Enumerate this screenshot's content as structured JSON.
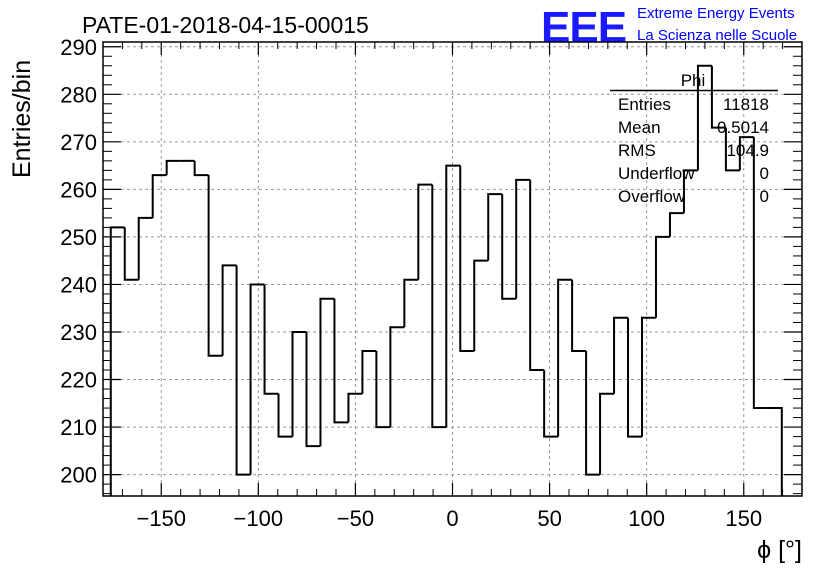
{
  "header": {
    "title": "PATE-01-2018-04-15-00015",
    "logo_text": "EEE",
    "org_line1": "Extreme Energy Events",
    "org_line2": "La Scienza nelle Scuole"
  },
  "stats": {
    "name": "Phi",
    "rows": [
      {
        "label": "Entries",
        "value": "11818"
      },
      {
        "label": "Mean",
        "value": "0.5014"
      },
      {
        "label": "RMS",
        "value": "104.9"
      },
      {
        "label": "Underflow",
        "value": "0"
      },
      {
        "label": "Overflow",
        "value": "0"
      }
    ]
  },
  "chart_data": {
    "type": "histogram",
    "title": "PATE-01-2018-04-15-00015",
    "xlabel": "ϕ [°]",
    "ylabel": "Entries/bin",
    "xlim": [
      -180,
      180
    ],
    "ylim": [
      195.5,
      291
    ],
    "bin_width": 7.2,
    "bin_edges_start": -176,
    "values": [
      252,
      241,
      254,
      263,
      266,
      266,
      263,
      225,
      244,
      200,
      240,
      217,
      208,
      230,
      206,
      237,
      211,
      217,
      226,
      210,
      231,
      241,
      261,
      210,
      265,
      226,
      245,
      259,
      237,
      262,
      222,
      208,
      241,
      226,
      200,
      217,
      233,
      208,
      233,
      250,
      255,
      264,
      286,
      273,
      264,
      271,
      214,
      214
    ],
    "x_ticks": [
      -150,
      -100,
      -50,
      0,
      50,
      100,
      150
    ],
    "x_tick_labels": [
      "−150",
      "−100",
      "−50",
      "0",
      "50",
      "100",
      "150"
    ],
    "y_ticks": [
      200,
      210,
      220,
      230,
      240,
      250,
      260,
      270,
      280,
      290
    ],
    "y_tick_labels": [
      "200",
      "210",
      "220",
      "230",
      "240",
      "250",
      "260",
      "270",
      "280",
      "290"
    ],
    "grid": true,
    "legend": "top-right stats box",
    "colors": {
      "line": "#000000",
      "grid": "#9a9a9a",
      "logo": "#1a1aff",
      "org_text": "#0000ff"
    }
  }
}
